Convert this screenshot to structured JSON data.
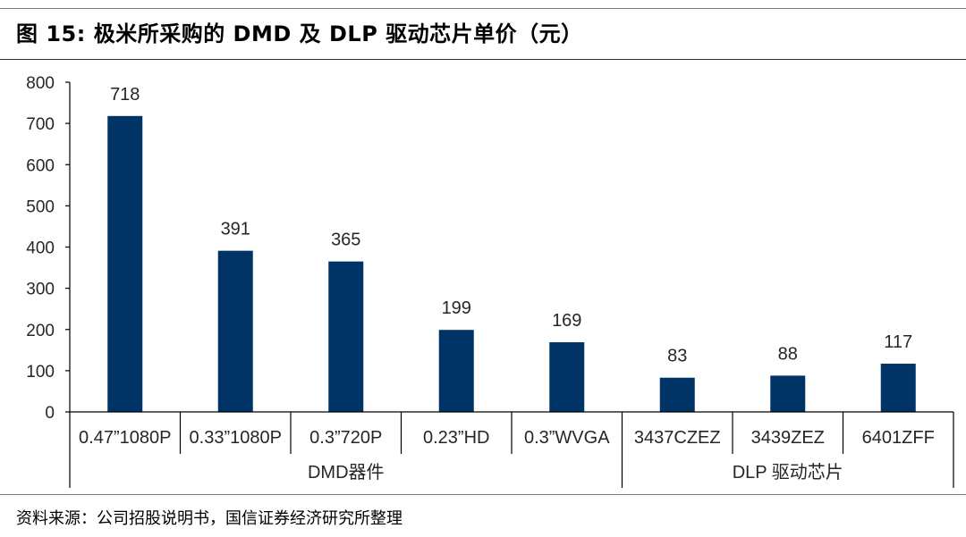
{
  "title": "图 15:  极米所采购的 DMD 及 DLP 驱动芯片单价（元）",
  "source": "资料来源：公司招股说明书，国信证券经济研究所整理",
  "colors": {
    "bar": "#003366",
    "axis": "#000000"
  },
  "chart_data": {
    "type": "bar",
    "title": "",
    "xlabel": "",
    "ylabel": "",
    "ylim": [
      0,
      800
    ],
    "yticks": [
      0,
      100,
      200,
      300,
      400,
      500,
      600,
      700,
      800
    ],
    "categories": [
      "0.47”1080P",
      "0.33”1080P",
      "0.3”720P",
      "0.23”HD",
      "0.3”WVGA",
      "3437CZEZ",
      "3439ZEZ",
      "6401ZFF"
    ],
    "values": [
      718,
      391,
      365,
      199,
      169,
      83,
      88,
      117
    ],
    "groups": [
      {
        "label": "DMD器件",
        "span": [
          0,
          4
        ]
      },
      {
        "label": "DLP 驱动芯片",
        "span": [
          5,
          7
        ]
      }
    ],
    "grid": false,
    "legend": "none"
  }
}
